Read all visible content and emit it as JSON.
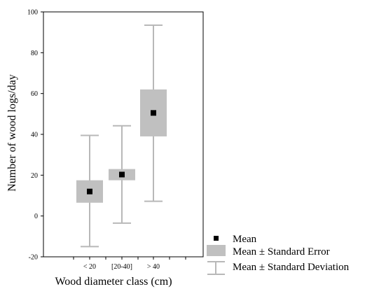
{
  "chart_data": {
    "type": "box",
    "xlabel": "Wood diameter class (cm)",
    "ylabel": "Number of wood logs/day",
    "ylim": [
      -20,
      100
    ],
    "yticks": [
      -20,
      0,
      20,
      40,
      60,
      80,
      100
    ],
    "categories": [
      "< 20",
      "[20-40]",
      "> 40"
    ],
    "series": [
      {
        "category": "< 20",
        "mean": 12,
        "se_low": 6.5,
        "se_high": 17.5,
        "sd_low": -15,
        "sd_high": 39.5
      },
      {
        "category": "[20-40]",
        "mean": 20.3,
        "se_low": 17.5,
        "se_high": 23,
        "sd_low": -3.5,
        "sd_high": 44.2
      },
      {
        "category": "> 40",
        "mean": 50.5,
        "se_low": 39,
        "se_high": 62,
        "sd_low": 7.2,
        "sd_high": 93.5
      }
    ],
    "legend": {
      "position": "bottom-right",
      "mean_label": "Mean",
      "se_label": "Mean ± Standard Error",
      "sd_label": "Mean ± Standard Deviation"
    },
    "colors": {
      "box": "#c0c0c0",
      "whisker": "#b8b8b8",
      "mean": "#000000",
      "axis": "#000000"
    }
  }
}
